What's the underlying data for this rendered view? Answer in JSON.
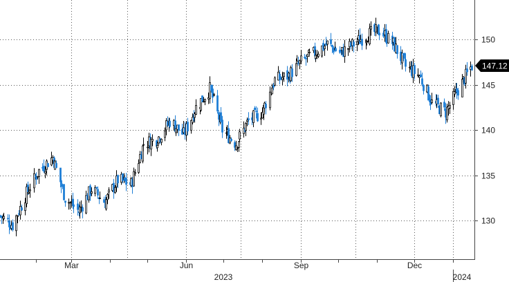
{
  "chart_data": {
    "type": "candlestick",
    "title": "",
    "ylim": [
      125,
      154
    ],
    "yticks": [
      130,
      135,
      140,
      145,
      150
    ],
    "xlim": [
      "2023-01-03",
      "2024-01-16"
    ],
    "xtick_labels": [
      {
        "date": "2023-03-01",
        "label": "Mar"
      },
      {
        "date": "2023-06-01",
        "label": "Jun"
      },
      {
        "date": "2023-09-01",
        "label": "Sep"
      },
      {
        "date": "2023-12-01",
        "label": "Dec"
      }
    ],
    "year_labels": [
      {
        "date": "2023-07-01",
        "label": "2023"
      },
      {
        "date": "2024-01-08",
        "label": "2024"
      }
    ],
    "last_value": "147.12",
    "grid": true,
    "colors": {
      "up": "#000000",
      "down": "#1f7fd6",
      "grid": "#555555",
      "label_bg": "#000000"
    },
    "close_series": {
      "dates": [
        "2023-01-03",
        "2023-01-13",
        "2023-01-24",
        "2023-02-03",
        "2023-02-14",
        "2023-02-24",
        "2023-03-07",
        "2023-03-17",
        "2023-03-28",
        "2023-04-07",
        "2023-04-18",
        "2023-04-28",
        "2023-05-09",
        "2023-05-19",
        "2023-05-30",
        "2023-06-09",
        "2023-06-20",
        "2023-06-30",
        "2023-07-11",
        "2023-07-21",
        "2023-08-01",
        "2023-08-11",
        "2023-08-22",
        "2023-09-01",
        "2023-09-12",
        "2023-09-22",
        "2023-10-03",
        "2023-10-13",
        "2023-10-24",
        "2023-11-03",
        "2023-11-14",
        "2023-11-24",
        "2023-12-05",
        "2023-12-15",
        "2023-12-26",
        "2024-01-05",
        "2024-01-16"
      ],
      "values": [
        130.5,
        129.5,
        133.0,
        135.5,
        137.0,
        132.5,
        131.0,
        133.5,
        132.0,
        134.5,
        134.0,
        138.5,
        139.0,
        141.0,
        139.5,
        142.5,
        144.5,
        140.0,
        138.5,
        141.0,
        142.0,
        145.5,
        146.0,
        147.5,
        148.5,
        149.5,
        148.5,
        149.5,
        150.5,
        151.0,
        149.5,
        147.0,
        146.0,
        143.0,
        142.0,
        144.5,
        147.12
      ]
    }
  }
}
